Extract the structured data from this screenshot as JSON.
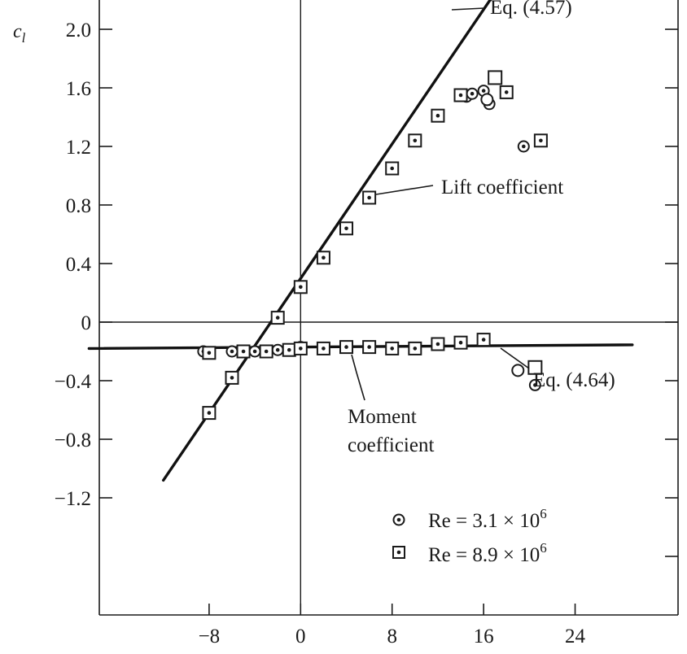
{
  "chart_data": {
    "type": "scatter",
    "title": "",
    "xlabel": "",
    "ylabel": "c",
    "ylabel_subscript": "l",
    "xlim": [
      -17.6,
      33
    ],
    "ylim": [
      -2.0,
      2.2
    ],
    "x_ticks": [
      -8,
      0,
      8,
      16,
      24
    ],
    "x_tick_labels": [
      "−8",
      "0",
      "8",
      "16",
      "24"
    ],
    "y_ticks": [
      2.0,
      1.6,
      1.2,
      0.8,
      0.4,
      0,
      -0.4,
      -0.8,
      -1.2
    ],
    "y_tick_labels": [
      "2.0",
      "1.6",
      "1.2",
      "0.8",
      "0.4",
      "0",
      "−0.4",
      "−0.8",
      "−1.2"
    ],
    "grid": false,
    "legend_position": "bottom-right",
    "lines": [
      {
        "label": "Eq. (4.57)",
        "x": [
          -12,
          17
        ],
        "y": [
          -1.08,
          2.25
        ]
      },
      {
        "label": "Eq. (4.64)",
        "x": [
          -18.5,
          29
        ],
        "y": [
          -0.18,
          -0.155
        ]
      }
    ],
    "series": [
      {
        "name": "Re = 3.1 × 10⁶",
        "marker": "dot-circle",
        "lift": {
          "x": [
            -8,
            -6,
            -2,
            0,
            2,
            4,
            6,
            8,
            10,
            14,
            14.5,
            15,
            16,
            16.5,
            19.5
          ],
          "y": [
            -0.62,
            -0.38,
            0.03,
            0.24,
            0.44,
            0.64,
            0.85,
            1.05,
            1.24,
            1.55,
            1.54,
            1.56,
            1.58,
            1.49,
            1.2
          ]
        },
        "moment": {
          "x": [
            -8.5,
            -6,
            -4,
            -2,
            0,
            2,
            4,
            6,
            8,
            10,
            12,
            14,
            20.5
          ],
          "y": [
            -0.2,
            -0.2,
            -0.2,
            -0.19,
            -0.17,
            -0.18,
            -0.17,
            -0.17,
            -0.18,
            -0.18,
            -0.15,
            -0.14,
            -0.43
          ]
        },
        "open_markers": {
          "x": [
            16.3,
            19
          ],
          "y": [
            1.52,
            -0.33
          ]
        }
      },
      {
        "name": "Re = 8.9 × 10⁶",
        "marker": "dot-square",
        "lift": {
          "x": [
            -8,
            -6,
            -2,
            0,
            2,
            4,
            6,
            8,
            10,
            12,
            14,
            18,
            21
          ],
          "y": [
            -0.62,
            -0.38,
            0.03,
            0.24,
            0.44,
            0.64,
            0.85,
            1.05,
            1.24,
            1.41,
            1.55,
            1.57,
            1.24
          ]
        },
        "moment": {
          "x": [
            -8,
            -5,
            -3,
            -1,
            0,
            2,
            4,
            6,
            8,
            10,
            12,
            14,
            16
          ],
          "y": [
            -0.21,
            -0.2,
            -0.2,
            -0.19,
            -0.18,
            -0.18,
            -0.17,
            -0.17,
            -0.18,
            -0.18,
            -0.15,
            -0.14,
            -0.12
          ]
        },
        "open_markers": {
          "x": [
            17,
            20.5
          ],
          "y": [
            1.67,
            -0.31
          ]
        }
      }
    ],
    "annotations": [
      "Eq. (4.57)",
      "Lift coefficient",
      "Moment",
      "coefficient",
      "Eq. (4.64)"
    ],
    "legend": [
      {
        "label_base": "Re = 3.1 × 10",
        "exponent": "6",
        "marker": "dot-circle"
      },
      {
        "label_base": "Re = 8.9 × 10",
        "exponent": "6",
        "marker": "dot-square"
      }
    ]
  }
}
